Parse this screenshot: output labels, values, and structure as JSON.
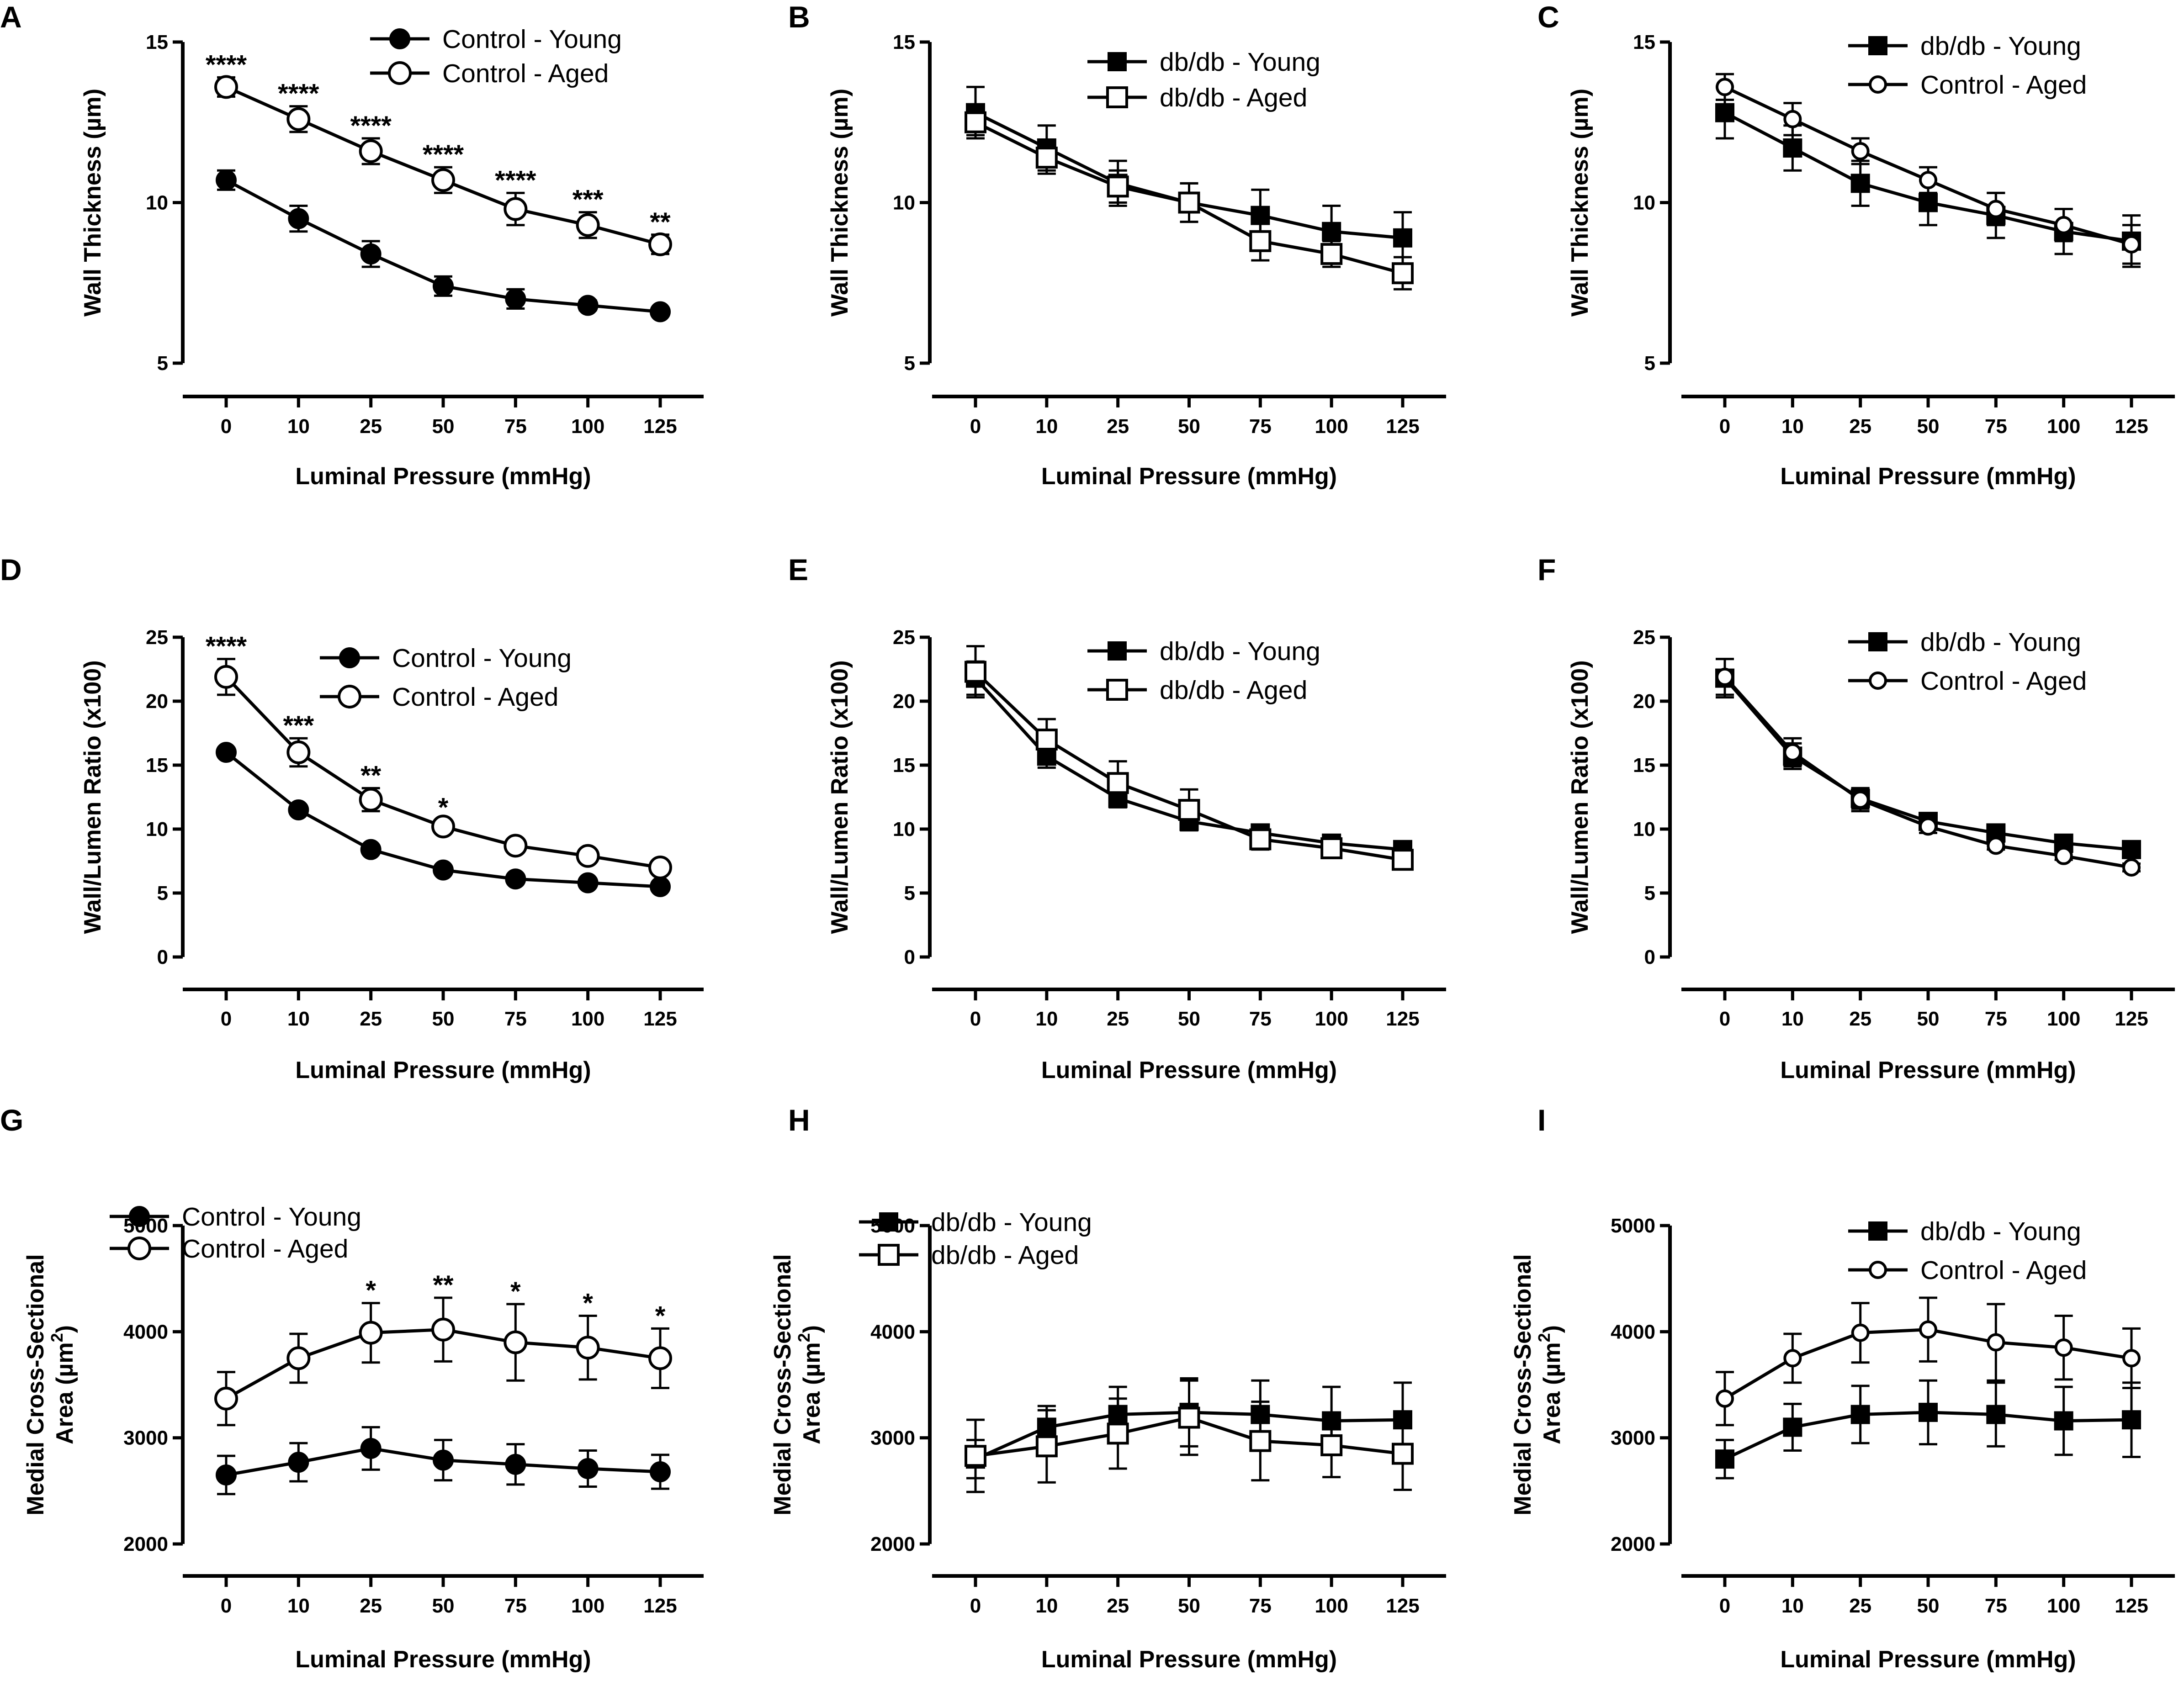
{
  "chart_data": [
    {
      "panel": "A",
      "type": "line",
      "x": [
        "0",
        "10",
        "25",
        "50",
        "75",
        "100",
        "125"
      ],
      "xlabel": "Luminal Pressure (mmHg)",
      "ylabel": "Wall Thickness (µm)",
      "ylim": [
        5,
        15
      ],
      "yticks": [
        "5",
        "10",
        "15"
      ],
      "ytick_values": [
        5,
        10,
        15
      ],
      "legend_position": "top-right",
      "series": [
        {
          "name": "Control - Young",
          "marker": "circle-filled",
          "values": [
            10.7,
            9.5,
            8.4,
            7.4,
            7.0,
            6.8,
            6.6
          ],
          "err": [
            0.3,
            0.4,
            0.4,
            0.3,
            0.3,
            0.15,
            0.1
          ]
        },
        {
          "name": "Control - Aged",
          "marker": "circle-open",
          "values": [
            13.6,
            12.6,
            11.6,
            10.7,
            9.8,
            9.3,
            8.7
          ],
          "err": [
            0.3,
            0.4,
            0.4,
            0.4,
            0.5,
            0.4,
            0.3
          ]
        }
      ],
      "annotations": [
        "****",
        "****",
        "****",
        "****",
        "****",
        "***",
        "**"
      ]
    },
    {
      "panel": "B",
      "type": "line",
      "x": [
        "0",
        "10",
        "25",
        "50",
        "75",
        "100",
        "125"
      ],
      "xlabel": "Luminal Pressure (mmHg)",
      "ylabel": "Wall Thickness (µm)",
      "ylim": [
        5,
        15
      ],
      "yticks": [
        "5",
        "10",
        "15"
      ],
      "ytick_values": [
        5,
        10,
        15
      ],
      "legend_position": "top-right",
      "series": [
        {
          "name": "db/db - Young",
          "marker": "square-filled",
          "values": [
            12.8,
            11.7,
            10.6,
            10.0,
            9.6,
            9.1,
            8.9
          ],
          "err": [
            0.8,
            0.7,
            0.7,
            0.6,
            0.8,
            0.8,
            0.8
          ]
        },
        {
          "name": "db/db - Aged",
          "marker": "square-open",
          "values": [
            12.5,
            11.4,
            10.5,
            10.0,
            8.8,
            8.4,
            7.8
          ],
          "err": [
            0.4,
            0.5,
            0.5,
            0.6,
            0.6,
            0.4,
            0.5
          ]
        }
      ],
      "annotations": []
    },
    {
      "panel": "C",
      "type": "line",
      "x": [
        "0",
        "10",
        "25",
        "50",
        "75",
        "100",
        "125"
      ],
      "xlabel": "Luminal Pressure (mmHg)",
      "ylabel": "Wall Thickness (µm)",
      "ylim": [
        5,
        15
      ],
      "yticks": [
        "5",
        "10",
        "15"
      ],
      "ytick_values": [
        5,
        10,
        15
      ],
      "legend_position": "top-right",
      "series": [
        {
          "name": "db/db - Young",
          "marker": "square-filled",
          "values": [
            12.8,
            11.7,
            10.6,
            10.0,
            9.6,
            9.1,
            8.8
          ],
          "err": [
            0.8,
            0.7,
            0.7,
            0.7,
            0.7,
            0.7,
            0.8
          ]
        },
        {
          "name": "Control - Aged",
          "marker": "circle-open-small",
          "values": [
            13.6,
            12.6,
            11.6,
            10.7,
            9.8,
            9.3,
            8.7
          ],
          "err": [
            0.4,
            0.5,
            0.4,
            0.4,
            0.5,
            0.5,
            0.6
          ]
        }
      ],
      "annotations": []
    },
    {
      "panel": "D",
      "type": "line",
      "x": [
        "0",
        "10",
        "25",
        "50",
        "75",
        "100",
        "125"
      ],
      "xlabel": "Luminal Pressure (mmHg)",
      "ylabel": "Wall/Lumen Ratio  (x100)",
      "ylim": [
        0,
        25
      ],
      "yticks": [
        "0",
        "5",
        "10",
        "15",
        "20",
        "25"
      ],
      "ytick_values": [
        0,
        5,
        10,
        15,
        20,
        25
      ],
      "legend_position": "top-right",
      "series": [
        {
          "name": "Control - Young",
          "marker": "circle-filled",
          "values": [
            16.0,
            11.5,
            8.4,
            6.8,
            6.1,
            5.8,
            5.5
          ],
          "err": [
            0.2,
            0.2,
            0.2,
            0.2,
            0.2,
            0.2,
            0.2
          ]
        },
        {
          "name": "Control - Aged",
          "marker": "circle-open",
          "values": [
            21.9,
            16.0,
            12.3,
            10.2,
            8.7,
            7.9,
            7.0
          ],
          "err": [
            1.4,
            1.1,
            0.9,
            0.5,
            0.3,
            0.3,
            0.3
          ]
        }
      ],
      "annotations": [
        "****",
        "***",
        "**",
        "*",
        "",
        "",
        ""
      ]
    },
    {
      "panel": "E",
      "type": "line",
      "x": [
        "0",
        "10",
        "25",
        "50",
        "75",
        "100",
        "125"
      ],
      "xlabel": "Luminal Pressure (mmHg)",
      "ylabel": "Wall/Lumen Ratio  (x100)",
      "ylim": [
        0,
        25
      ],
      "yticks": [
        "0",
        "5",
        "10",
        "15",
        "20",
        "25"
      ],
      "ytick_values": [
        0,
        5,
        10,
        15,
        20,
        25
      ],
      "legend_position": "top-right",
      "series": [
        {
          "name": "db/db - Young",
          "marker": "square-filled",
          "values": [
            21.8,
            15.7,
            12.4,
            10.6,
            9.7,
            8.9,
            8.4
          ],
          "err": [
            1.3,
            0.9,
            0.7,
            0.5,
            0.5,
            0.4,
            0.4
          ]
        },
        {
          "name": "db/db - Aged",
          "marker": "square-open",
          "values": [
            22.3,
            17.0,
            13.6,
            11.5,
            9.2,
            8.5,
            7.6
          ],
          "err": [
            2.0,
            1.6,
            1.7,
            1.6,
            0.8,
            0.6,
            0.5
          ]
        }
      ],
      "annotations": []
    },
    {
      "panel": "F",
      "type": "line",
      "x": [
        "0",
        "10",
        "25",
        "50",
        "75",
        "100",
        "125"
      ],
      "xlabel": "Luminal Pressure (mmHg)",
      "ylabel": "Wall/Lumen Ratio  (x100)",
      "ylim": [
        0,
        25
      ],
      "yticks": [
        "0",
        "5",
        "10",
        "15",
        "20",
        "25"
      ],
      "ytick_values": [
        0,
        5,
        10,
        15,
        20,
        25
      ],
      "legend_position": "top-right",
      "series": [
        {
          "name": "db/db - Young",
          "marker": "square-filled",
          "values": [
            21.8,
            15.7,
            12.4,
            10.6,
            9.7,
            8.9,
            8.4
          ],
          "err": [
            1.5,
            1.0,
            0.8,
            0.5,
            0.5,
            0.4,
            0.4
          ]
        },
        {
          "name": "Control - Aged",
          "marker": "circle-open-small",
          "values": [
            21.9,
            16.0,
            12.3,
            10.2,
            8.7,
            7.9,
            7.0
          ],
          "err": [
            1.4,
            1.1,
            0.9,
            0.5,
            0.3,
            0.3,
            0.3
          ]
        }
      ],
      "annotations": []
    },
    {
      "panel": "G",
      "type": "line",
      "x": [
        "0",
        "10",
        "25",
        "50",
        "75",
        "100",
        "125"
      ],
      "xlabel": "Luminal Pressure (mmHg)",
      "ylabel": [
        "Medial Cross-Sectional",
        "Area  (µm",
        "2",
        ")"
      ],
      "ylim": [
        2000,
        5000
      ],
      "yticks": [
        "2000",
        "3000",
        "4000",
        "5000"
      ],
      "ytick_values": [
        2000,
        3000,
        4000,
        5000
      ],
      "legend_position": "top-left",
      "series": [
        {
          "name": "Control - Young",
          "marker": "circle-filled",
          "values": [
            2650,
            2770,
            2900,
            2790,
            2750,
            2710,
            2680
          ],
          "err": [
            180,
            180,
            200,
            190,
            190,
            170,
            160
          ]
        },
        {
          "name": "Control - Aged",
          "marker": "circle-open",
          "values": [
            3370,
            3750,
            3990,
            4020,
            3900,
            3850,
            3750
          ],
          "err": [
            250,
            230,
            280,
            300,
            360,
            300,
            280
          ]
        }
      ],
      "annotations": [
        "",
        "",
        "*",
        "**",
        "*",
        "*",
        "*"
      ]
    },
    {
      "panel": "H",
      "type": "line",
      "x": [
        "0",
        "10",
        "25",
        "50",
        "75",
        "100",
        "125"
      ],
      "xlabel": "Luminal Pressure (mmHg)",
      "ylabel": [
        "Medial Cross-Sectional",
        "Area  (µm",
        "2",
        ")"
      ],
      "ylim": [
        2000,
        5000
      ],
      "yticks": [
        "2000",
        "3000",
        "4000",
        "5000"
      ],
      "ytick_values": [
        2000,
        3000,
        4000,
        5000
      ],
      "legend_position": "top-left",
      "series": [
        {
          "name": "db/db - Young",
          "marker": "square-filled",
          "values": [
            2800,
            3100,
            3220,
            3240,
            3220,
            3160,
            3170
          ],
          "err": [
            180,
            200,
            260,
            320,
            320,
            320,
            350
          ]
        },
        {
          "name": "db/db - Aged",
          "marker": "square-open",
          "values": [
            2830,
            2920,
            3040,
            3190,
            2970,
            2930,
            2850
          ],
          "err": [
            340,
            340,
            330,
            350,
            370,
            300,
            340
          ]
        }
      ],
      "annotations": []
    },
    {
      "panel": "I",
      "type": "line",
      "x": [
        "0",
        "10",
        "25",
        "50",
        "75",
        "100",
        "125"
      ],
      "xlabel": "Luminal Pressure (mmHg)",
      "ylabel": [
        "Medial Cross-Sectional",
        "Area  (µm",
        "2",
        ")"
      ],
      "ylim": [
        2000,
        5000
      ],
      "yticks": [
        "2000",
        "3000",
        "4000",
        "5000"
      ],
      "ytick_values": [
        2000,
        3000,
        4000,
        5000
      ],
      "legend_position": "top-right",
      "series": [
        {
          "name": "db/db - Young",
          "marker": "square-filled",
          "values": [
            2800,
            3100,
            3220,
            3240,
            3220,
            3160,
            3170
          ],
          "err": [
            180,
            220,
            270,
            300,
            300,
            320,
            350
          ]
        },
        {
          "name": "Control - Aged",
          "marker": "circle-open-small",
          "values": [
            3370,
            3750,
            3990,
            4020,
            3900,
            3850,
            3750
          ],
          "err": [
            250,
            230,
            280,
            300,
            360,
            300,
            280
          ]
        }
      ],
      "annotations": []
    }
  ]
}
